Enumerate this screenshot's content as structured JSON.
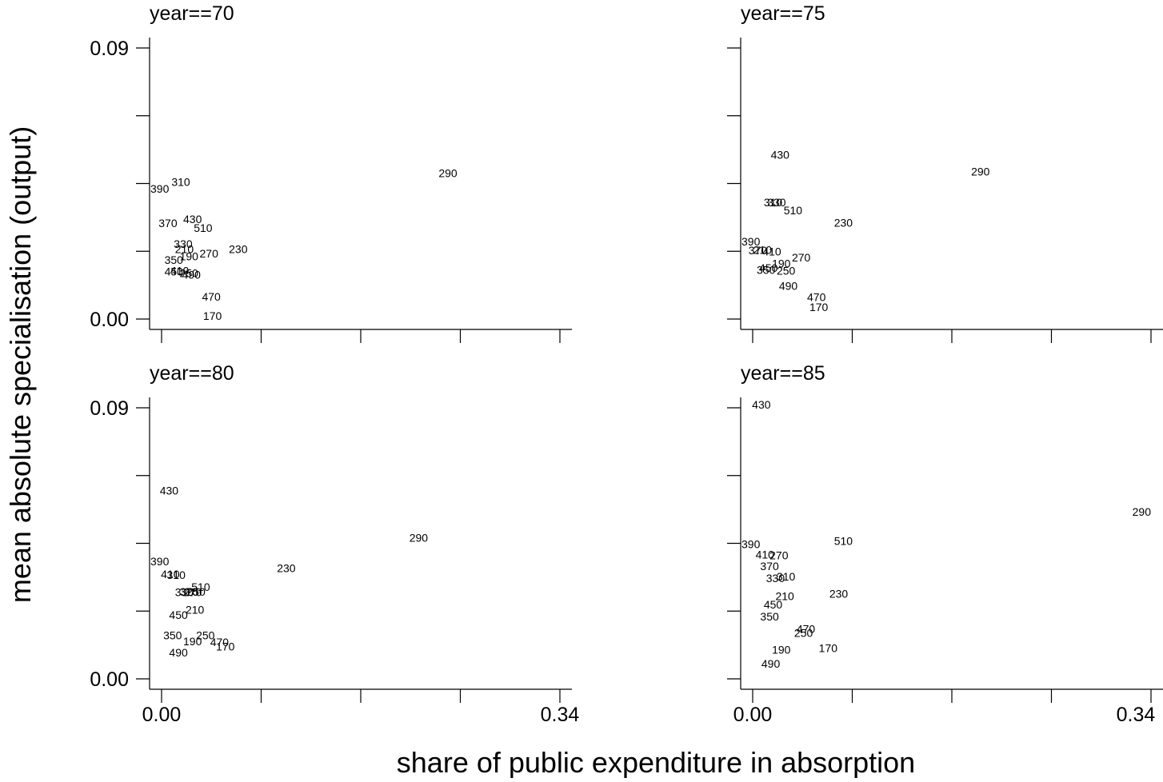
{
  "chart_data": {
    "type": "scatter",
    "xlabel": "share of public expenditure in absorption",
    "ylabel": "mean absolute specialisation (output)",
    "xlim": [
      0.0,
      0.34
    ],
    "ylim": [
      0.0,
      0.09
    ],
    "xtick_labels": [
      "0.00",
      "0.34"
    ],
    "ytick_labels": [
      "0.00",
      "0.09"
    ],
    "panels": [
      {
        "title": "year==70",
        "points": [
          {
            "label": "290",
            "x": 0.246,
            "y": 0.0485
          },
          {
            "label": "310",
            "x": 0.018,
            "y": 0.0455
          },
          {
            "label": "390",
            "x": 0.0,
            "y": 0.0433
          },
          {
            "label": "370",
            "x": 0.007,
            "y": 0.0318
          },
          {
            "label": "430",
            "x": 0.028,
            "y": 0.0332
          },
          {
            "label": "510",
            "x": 0.037,
            "y": 0.0302
          },
          {
            "label": "330",
            "x": 0.02,
            "y": 0.025
          },
          {
            "label": "210",
            "x": 0.021,
            "y": 0.0232
          },
          {
            "label": "190",
            "x": 0.025,
            "y": 0.0208
          },
          {
            "label": "270",
            "x": 0.042,
            "y": 0.0218
          },
          {
            "label": "230",
            "x": 0.067,
            "y": 0.0232
          },
          {
            "label": "350",
            "x": 0.012,
            "y": 0.0197
          },
          {
            "label": "450",
            "x": 0.012,
            "y": 0.0158
          },
          {
            "label": "410",
            "x": 0.017,
            "y": 0.016
          },
          {
            "label": "250",
            "x": 0.025,
            "y": 0.0152
          },
          {
            "label": "490",
            "x": 0.027,
            "y": 0.0148
          },
          {
            "label": "470",
            "x": 0.044,
            "y": 0.0075
          },
          {
            "label": "170",
            "x": 0.045,
            "y": 0.001
          }
        ]
      },
      {
        "title": "year==75",
        "points": [
          {
            "label": "430",
            "x": 0.025,
            "y": 0.0545
          },
          {
            "label": "290",
            "x": 0.196,
            "y": 0.049
          },
          {
            "label": "310",
            "x": 0.019,
            "y": 0.0388
          },
          {
            "label": "330",
            "x": 0.022,
            "y": 0.0388
          },
          {
            "label": "510",
            "x": 0.036,
            "y": 0.0361
          },
          {
            "label": "230",
            "x": 0.079,
            "y": 0.032
          },
          {
            "label": "390",
            "x": 0.0,
            "y": 0.0258
          },
          {
            "label": "370",
            "x": 0.006,
            "y": 0.0228
          },
          {
            "label": "210",
            "x": 0.01,
            "y": 0.023
          },
          {
            "label": "410",
            "x": 0.018,
            "y": 0.0225
          },
          {
            "label": "270",
            "x": 0.043,
            "y": 0.0205
          },
          {
            "label": "190",
            "x": 0.026,
            "y": 0.0184
          },
          {
            "label": "450",
            "x": 0.015,
            "y": 0.017
          },
          {
            "label": "350",
            "x": 0.013,
            "y": 0.0163
          },
          {
            "label": "250",
            "x": 0.03,
            "y": 0.016
          },
          {
            "label": "490",
            "x": 0.032,
            "y": 0.011
          },
          {
            "label": "470",
            "x": 0.056,
            "y": 0.0073
          },
          {
            "label": "170",
            "x": 0.058,
            "y": 0.004
          }
        ]
      },
      {
        "title": "year==80",
        "points": [
          {
            "label": "430",
            "x": 0.008,
            "y": 0.0625
          },
          {
            "label": "290",
            "x": 0.221,
            "y": 0.0468
          },
          {
            "label": "230",
            "x": 0.108,
            "y": 0.0368
          },
          {
            "label": "390",
            "x": 0.0,
            "y": 0.039
          },
          {
            "label": "410",
            "x": 0.009,
            "y": 0.0348
          },
          {
            "label": "310",
            "x": 0.014,
            "y": 0.0345
          },
          {
            "label": "510",
            "x": 0.035,
            "y": 0.0305
          },
          {
            "label": "330",
            "x": 0.021,
            "y": 0.0288
          },
          {
            "label": "370",
            "x": 0.025,
            "y": 0.029
          },
          {
            "label": "250",
            "x": 0.031,
            "y": 0.029
          },
          {
            "label": "270",
            "x": 0.028,
            "y": 0.0288
          },
          {
            "label": "210",
            "x": 0.03,
            "y": 0.023
          },
          {
            "label": "450",
            "x": 0.016,
            "y": 0.0213
          },
          {
            "label": "350",
            "x": 0.011,
            "y": 0.0145
          },
          {
            "label": "250",
            "x": 0.039,
            "y": 0.0145
          },
          {
            "label": "190",
            "x": 0.028,
            "y": 0.0125
          },
          {
            "label": "470",
            "x": 0.051,
            "y": 0.0122
          },
          {
            "label": "170",
            "x": 0.056,
            "y": 0.0107
          },
          {
            "label": "490",
            "x": 0.016,
            "y": 0.0088
          }
        ]
      },
      {
        "title": "year==85",
        "points": [
          {
            "label": "430",
            "x": 0.009,
            "y": 0.0911
          },
          {
            "label": "290",
            "x": 0.34,
            "y": 0.0555
          },
          {
            "label": "510",
            "x": 0.079,
            "y": 0.0458
          },
          {
            "label": "390",
            "x": 0.0,
            "y": 0.0448
          },
          {
            "label": "410",
            "x": 0.012,
            "y": 0.0413
          },
          {
            "label": "270",
            "x": 0.024,
            "y": 0.041
          },
          {
            "label": "370",
            "x": 0.016,
            "y": 0.0375
          },
          {
            "label": "310",
            "x": 0.03,
            "y": 0.034
          },
          {
            "label": "330",
            "x": 0.021,
            "y": 0.0335
          },
          {
            "label": "230",
            "x": 0.075,
            "y": 0.0283
          },
          {
            "label": "210",
            "x": 0.029,
            "y": 0.0275
          },
          {
            "label": "450",
            "x": 0.019,
            "y": 0.0247
          },
          {
            "label": "350",
            "x": 0.016,
            "y": 0.0207
          },
          {
            "label": "470",
            "x": 0.047,
            "y": 0.0166
          },
          {
            "label": "250",
            "x": 0.045,
            "y": 0.0153
          },
          {
            "label": "190",
            "x": 0.026,
            "y": 0.0097
          },
          {
            "label": "170",
            "x": 0.066,
            "y": 0.0102
          },
          {
            "label": "490",
            "x": 0.017,
            "y": 0.005
          }
        ]
      }
    ]
  }
}
